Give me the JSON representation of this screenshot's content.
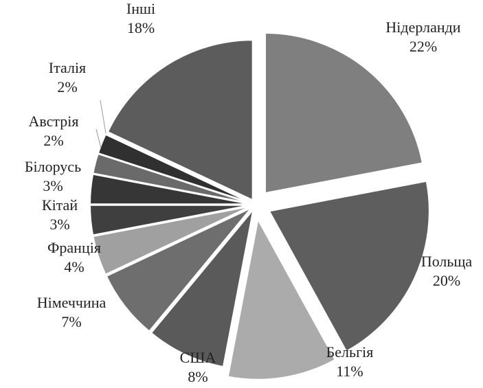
{
  "chart_data": {
    "type": "pie",
    "title": "",
    "exploded": true,
    "legend": "none",
    "slices": [
      {
        "name": "Нідерланди",
        "value": 22,
        "label": "22%",
        "color": "#7f7f7f"
      },
      {
        "name": "Польща",
        "value": 20,
        "label": "20%",
        "color": "#5e5e5e"
      },
      {
        "name": "Бельгія",
        "value": 11,
        "label": "11%",
        "color": "#ababab"
      },
      {
        "name": "США",
        "value": 8,
        "label": "8%",
        "color": "#5a5a5a"
      },
      {
        "name": "Німеччина",
        "value": 7,
        "label": "7%",
        "color": "#6e6e6e"
      },
      {
        "name": "Франція",
        "value": 4,
        "label": "4%",
        "color": "#a0a0a0"
      },
      {
        "name": "Кітай",
        "value": 3,
        "label": "3%",
        "color": "#3f3f3f"
      },
      {
        "name": "Білорусь",
        "value": 3,
        "label": "3%",
        "color": "#363636"
      },
      {
        "name": "Австрія",
        "value": 2,
        "label": "2%",
        "color": "#6a6a6a"
      },
      {
        "name": "Італія",
        "value": 2,
        "label": "2%",
        "color": "#303030"
      },
      {
        "name": "Інші",
        "value": 18,
        "label": "18%",
        "color": "#5c5c5c"
      }
    ]
  }
}
